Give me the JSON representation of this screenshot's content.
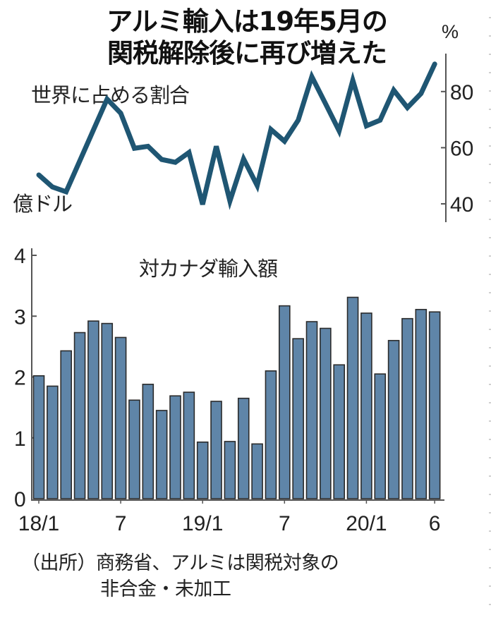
{
  "title_line1": "アルミ輸入は19年5月の",
  "title_line2": "関税解除後に再び増えた",
  "line_chart_label": "世界に占める割合",
  "bar_unit_label": "億ドル",
  "line_unit_label": "%",
  "bar_chart_label": "対カナダ輸入額",
  "source_line1": "（出所）商務省、アルミは関税対象の",
  "source_line2": "非合金・未加工",
  "colors": {
    "line": "#1f5673",
    "bar_fill": "#5f85a8",
    "bar_border": "#2b2b2b",
    "axis": "#555555"
  },
  "x_tick_labels": [
    "18/1",
    "7",
    "19/1",
    "7",
    "20/1",
    "6"
  ],
  "right_axis_ticks": [
    "80",
    "60",
    "40"
  ],
  "left_axis_ticks": [
    "4",
    "3",
    "2",
    "1",
    "0"
  ],
  "chart_data": [
    {
      "type": "line",
      "title": "世界に占める割合",
      "ylabel": "%",
      "ylim": [
        36,
        96
      ],
      "yticks": [
        40,
        60,
        80
      ],
      "axis_side": "right",
      "x": [
        "18/1",
        "18/2",
        "18/3",
        "18/4",
        "18/5",
        "18/6",
        "18/7",
        "18/8",
        "18/9",
        "18/10",
        "18/11",
        "18/12",
        "19/1",
        "19/2",
        "19/3",
        "19/4",
        "19/5",
        "19/6",
        "19/7",
        "19/8",
        "19/9",
        "19/10",
        "19/11",
        "19/12",
        "20/1",
        "20/2",
        "20/3",
        "20/4",
        "20/5",
        "20/6"
      ],
      "values": [
        50.3,
        46,
        44.3,
        55.3,
        66.3,
        77.3,
        72.3,
        59.8,
        60.5,
        55.8,
        54.8,
        58.3,
        39.8,
        60.5,
        41,
        56,
        46.5,
        66.5,
        62.3,
        69.8,
        85.3,
        75.7,
        66,
        84,
        67.8,
        69.8,
        80.5,
        74.3,
        79.3,
        89.8
      ]
    },
    {
      "type": "bar",
      "title": "対カナダ輸入額",
      "ylabel": "億ドル",
      "ylim": [
        0,
        4
      ],
      "yticks": [
        0,
        1,
        2,
        3,
        4
      ],
      "xtick_labels": [
        "18/1",
        "7",
        "19/1",
        "7",
        "20/1",
        "6"
      ],
      "categories": [
        "18/1",
        "18/2",
        "18/3",
        "18/4",
        "18/5",
        "18/6",
        "18/7",
        "18/8",
        "18/9",
        "18/10",
        "18/11",
        "18/12",
        "19/1",
        "19/2",
        "19/3",
        "19/4",
        "19/5",
        "19/6",
        "19/7",
        "19/8",
        "19/9",
        "19/10",
        "19/11",
        "19/12",
        "20/1",
        "20/2",
        "20/3",
        "20/4",
        "20/5",
        "20/6"
      ],
      "values": [
        2.02,
        1.85,
        2.43,
        2.73,
        2.92,
        2.88,
        2.65,
        1.62,
        1.88,
        1.45,
        1.69,
        1.75,
        0.93,
        1.6,
        0.94,
        1.65,
        0.9,
        2.1,
        3.17,
        2.63,
        2.91,
        2.8,
        2.2,
        3.31,
        3.05,
        2.05,
        2.6,
        2.96,
        3.11,
        3.07
      ]
    }
  ]
}
